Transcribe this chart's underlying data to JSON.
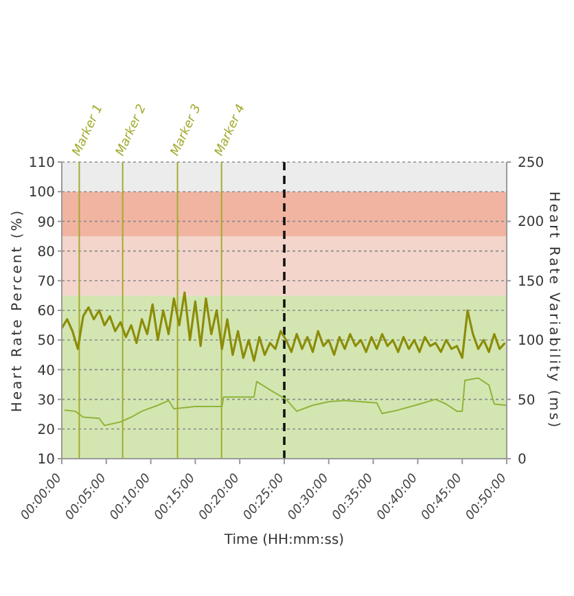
{
  "chart_data": {
    "type": "line",
    "xlabel": "Time (HH:mm:ss)",
    "ylabel": "Heart Rate Percent (%)",
    "y2label": "Heart Rate Variability (ms)",
    "xlim": [
      0,
      0.8333
    ],
    "xticks": [
      {
        "value": 0,
        "label": "00:00:00"
      },
      {
        "value": 0.0833,
        "label": "00:05:00"
      },
      {
        "value": 0.1667,
        "label": "00:10:00"
      },
      {
        "value": 0.25,
        "label": "00:15:00"
      },
      {
        "value": 0.3333,
        "label": "00:20:00"
      },
      {
        "value": 0.4167,
        "label": "00:25:00"
      },
      {
        "value": 0.5,
        "label": "00:30:00"
      },
      {
        "value": 0.5833,
        "label": "00:35:00"
      },
      {
        "value": 0.6667,
        "label": "00:40:00"
      },
      {
        "value": 0.75,
        "label": "00:45:00"
      },
      {
        "value": 0.8333,
        "label": "00:50:00"
      }
    ],
    "ylim": [
      10,
      110
    ],
    "yticks": [
      10,
      20,
      30,
      40,
      50,
      60,
      70,
      80,
      90,
      100,
      110
    ],
    "y2lim": [
      0,
      250
    ],
    "y2ticks": [
      0,
      50,
      100,
      150,
      200,
      250
    ],
    "grid": "y",
    "marker": "none",
    "series": [
      {
        "color": "#8c8c0a",
        "x": [
          0,
          0.01,
          0.02,
          0.03,
          0.04,
          0.05,
          0.06,
          0.07,
          0.08,
          0.09,
          0.1,
          0.11,
          0.12,
          0.13,
          0.14,
          0.15,
          0.16,
          0.17,
          0.18,
          0.19,
          0.2,
          0.21,
          0.22,
          0.23,
          0.24,
          0.25,
          0.26,
          0.27,
          0.28,
          0.29,
          0.3,
          0.31,
          0.32,
          0.33,
          0.34,
          0.35,
          0.36,
          0.37,
          0.38,
          0.39,
          0.4,
          0.41,
          0.42,
          0.43,
          0.44,
          0.45,
          0.46,
          0.47,
          0.48,
          0.49,
          0.5,
          0.51,
          0.52,
          0.53,
          0.54,
          0.55,
          0.56,
          0.57,
          0.58,
          0.59,
          0.6,
          0.61,
          0.62,
          0.63,
          0.64,
          0.65,
          0.66,
          0.67,
          0.68,
          0.69,
          0.7,
          0.71,
          0.72,
          0.73,
          0.74,
          0.75,
          0.76,
          0.77,
          0.78,
          0.79,
          0.8,
          0.81,
          0.82,
          0.83
        ],
        "values": [
          54,
          57,
          53,
          47,
          58,
          61,
          57,
          60,
          55,
          58,
          53,
          56,
          51,
          55,
          49,
          57,
          52,
          62,
          50,
          60,
          52,
          64,
          55,
          66,
          50,
          63,
          48,
          64,
          52,
          60,
          47,
          57,
          45,
          53,
          44,
          50,
          43,
          51,
          45,
          49,
          47,
          53,
          50,
          46,
          52,
          47,
          51,
          46,
          53,
          48,
          50,
          45,
          51,
          47,
          52,
          48,
          50,
          46,
          51,
          47,
          52,
          48,
          50,
          46,
          51,
          47,
          50,
          46,
          51,
          48,
          49,
          46,
          50,
          47,
          48,
          44,
          60,
          52,
          47,
          50,
          46,
          52,
          47,
          49
        ]
      },
      {
        "color": "#8fb33a",
        "axis": "y2",
        "x": [
          0.005,
          0.025,
          0.04,
          0.07,
          0.08,
          0.11,
          0.13,
          0.15,
          0.18,
          0.2,
          0.21,
          0.25,
          0.3,
          0.303,
          0.36,
          0.365,
          0.39,
          0.42,
          0.44,
          0.47,
          0.5,
          0.53,
          0.59,
          0.6,
          0.63,
          0.67,
          0.7,
          0.72,
          0.74,
          0.75,
          0.755,
          0.78,
          0.8,
          0.81,
          0.8333
        ],
        "values": [
          41,
          40,
          35,
          34,
          28,
          31,
          35,
          40,
          45,
          49,
          42,
          44,
          44,
          52,
          52,
          65,
          58,
          50,
          40,
          45,
          48,
          49,
          47,
          38,
          41,
          46,
          50,
          46,
          40,
          40,
          66,
          68,
          62,
          46,
          45
        ]
      }
    ],
    "bands": [
      {
        "axis": "y",
        "from": 10,
        "to": 65,
        "color": "#d3e6b1"
      },
      {
        "axis": "y",
        "from": 65,
        "to": 85,
        "color": "#f3d5cb"
      },
      {
        "axis": "y",
        "from": 85,
        "to": 100,
        "color": "#f1b4a1"
      }
    ],
    "ref_lines": [
      {
        "axis": "x",
        "value": 0.0327,
        "label": "Marker 1",
        "color": "#a3ab2e"
      },
      {
        "axis": "x",
        "value": 0.114,
        "label": "Marker 2",
        "color": "#a3ab2e"
      },
      {
        "axis": "x",
        "value": 0.2167,
        "label": "Marker 3",
        "color": "#a3ab2e"
      },
      {
        "axis": "x",
        "value": 0.2992,
        "label": "Marker 4",
        "color": "#a3ab2e"
      },
      {
        "axis": "x",
        "value": 0.4167,
        "color": "#111111",
        "line_style": "dashed"
      }
    ]
  }
}
